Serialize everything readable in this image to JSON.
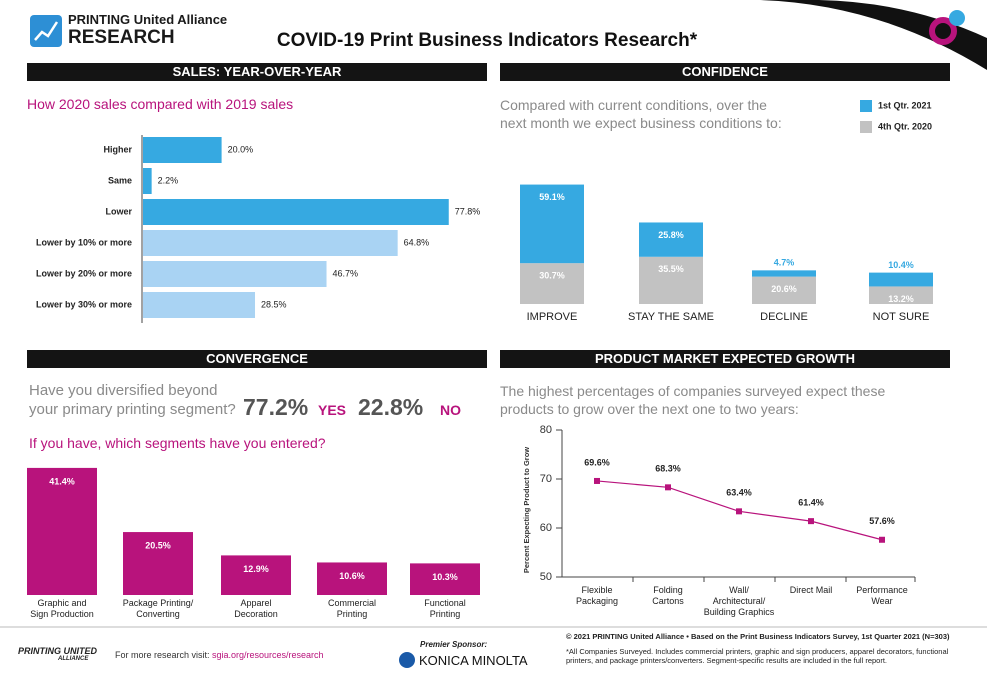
{
  "header": {
    "brand": "PRINTING United Alliance",
    "brand_sub": "RESEARCH",
    "title": "COVID-19 Print Business Indicators Research*"
  },
  "chart_data": [
    {
      "type": "hbar",
      "section": "SALES: YEAR-OVER-YEAR",
      "subtitle": "How 2020 sales compared with 2019 sales",
      "categories": [
        "Higher",
        "Same",
        "Lower",
        "Lower by 10% or more",
        "Lower by 20% or more",
        "Lower by 30% or more"
      ],
      "values": [
        20.0,
        2.2,
        77.8,
        64.8,
        46.7,
        28.5
      ],
      "value_labels": [
        "20.0%",
        "2.2%",
        "77.8%",
        "64.8%",
        "46.7%",
        "28.5%"
      ],
      "colors": [
        "#36a9e1",
        "#36a9e1",
        "#36a9e1",
        "#a9d3f3",
        "#a9d3f3",
        "#a9d3f3"
      ]
    },
    {
      "type": "stacked_bar",
      "section": "CONFIDENCE",
      "subtitle": "Compared with current conditions, over the\nnext month we expect business conditions to:",
      "categories": [
        "IMPROVE",
        "STAY THE SAME",
        "DECLINE",
        "NOT SURE"
      ],
      "series": [
        {
          "name": "1st Qtr. 2021",
          "color": "#36a9e1",
          "values": [
            59.1,
            25.8,
            4.7,
            10.4
          ],
          "value_labels": [
            "59.1%",
            "25.8%",
            "4.7%",
            "10.4%"
          ]
        },
        {
          "name": "4th Qtr. 2020",
          "color": "#c2c2c2",
          "values": [
            30.7,
            35.5,
            20.6,
            13.2
          ],
          "value_labels": [
            "30.7%",
            "35.5%",
            "20.6%",
            "13.2%"
          ]
        }
      ]
    },
    {
      "type": "bar",
      "section": "CONVERGENCE",
      "question": "Have you diversified beyond\nyour primary printing segment?",
      "answers": [
        {
          "label": "77.2%",
          "answer": "YES"
        },
        {
          "label": "22.8%",
          "answer": "NO"
        }
      ],
      "subtitle": "If you have, which segments have you entered?",
      "categories": [
        "Graphic and\nSign Production",
        "Package Printing/\nConverting",
        "Apparel\nDecoration",
        "Commercial\nPrinting",
        "Functional\nPrinting"
      ],
      "values": [
        41.4,
        20.5,
        12.9,
        10.6,
        10.3
      ],
      "value_labels": [
        "41.4%",
        "20.5%",
        "12.9%",
        "10.6%",
        "10.3%"
      ],
      "color": "#b8137c"
    },
    {
      "type": "line",
      "section": "PRODUCT MARKET EXPECTED GROWTH",
      "subtitle": "The highest percentages of companies surveyed expect these\nproducts to grow over the next one to two years:",
      "categories": [
        "Flexible\nPackaging",
        "Folding\nCartons",
        "Wall/\nArchitectural/\nBuilding Graphics",
        "Direct Mail",
        "Performance\nWear"
      ],
      "values": [
        69.6,
        68.3,
        63.4,
        61.4,
        57.6
      ],
      "value_labels": [
        "69.6%",
        "68.3%",
        "63.4%",
        "61.4%",
        "57.6%"
      ],
      "color": "#b8137c",
      "ylabel": "Percent Expecting Product to Grow",
      "ylim": [
        50,
        80
      ],
      "yticks": [
        50,
        60,
        70,
        80
      ]
    }
  ],
  "footer": {
    "logo_top": "PRINTING UNITED",
    "logo_bottom": "ALLIANCE",
    "visit": "For more research visit:",
    "link": "sgia.org/resources/research",
    "sponsor_label": "Premier Sponsor:",
    "sponsor": "KONICA MINOLTA",
    "copyright": "© 2021 PRINTING United Alliance • Based on the Print Business Indicators Survey, 1st Quarter 2021 (N=303)",
    "note": "*All Companies Surveyed. Includes commercial printers, graphic and sign producers, apparel decorators, functional\nprinters, and package printers/converters. Segment-specific results are included in the full report."
  }
}
